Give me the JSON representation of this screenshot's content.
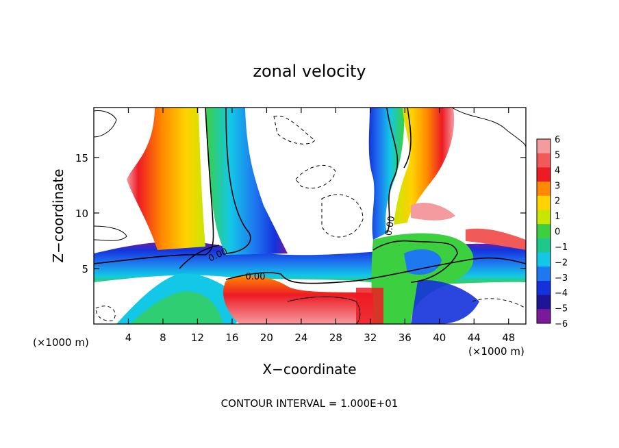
{
  "chart_data": {
    "type": "heatmap",
    "title": "zonal velocity",
    "xlabel": "X−coordinate",
    "ylabel": "Z−coordinate",
    "x_unit_left": "(×1000 m)",
    "x_unit_right": "(×1000 m)",
    "footer": "CONTOUR INTERVAL = 1.000E+01",
    "xlim": [
      0,
      50
    ],
    "ylim": [
      0,
      19.5
    ],
    "x_ticks": [
      4,
      8,
      12,
      16,
      20,
      24,
      28,
      32,
      36,
      40,
      44,
      48
    ],
    "y_ticks": [
      5,
      10,
      15
    ],
    "colorbar": {
      "levels": [
        "6",
        "5",
        "4",
        "3",
        "2",
        "1",
        "0",
        "−1",
        "−2",
        "−3",
        "−4",
        "−5",
        "−6"
      ],
      "colors": [
        "#f49ba0",
        "#f25a5a",
        "#ee1b24",
        "#ff8a00",
        "#ffd200",
        "#c8e600",
        "#3cd040",
        "#1ec88c",
        "#12c8e6",
        "#1e78f0",
        "#1432dc",
        "#1e1496",
        "#7a1a9a"
      ]
    },
    "contour_labels": [
      {
        "text": "0.00",
        "x": 14.5,
        "y": 6.0
      },
      {
        "text": "0.00",
        "x": 18.7,
        "y": 4.0
      },
      {
        "text": "0.00",
        "x": 34.6,
        "y": 8.8
      }
    ],
    "bands": [
      {
        "name": "left-updraft",
        "x": 8.5,
        "z": 12.0,
        "color": "#ff8a00"
      },
      {
        "name": "central-downdraft",
        "x": 15.0,
        "z": 12.0,
        "color": "#1432dc"
      },
      {
        "name": "right-downdraft",
        "x": 34.0,
        "z": 14.0,
        "color": "#1e78f0"
      },
      {
        "name": "right-updraft",
        "x": 38.0,
        "z": 15.0,
        "color": "#ee1b24"
      },
      {
        "name": "low-level-shear",
        "x": 25.0,
        "z": 5.0,
        "color": "#1432dc"
      }
    ]
  }
}
